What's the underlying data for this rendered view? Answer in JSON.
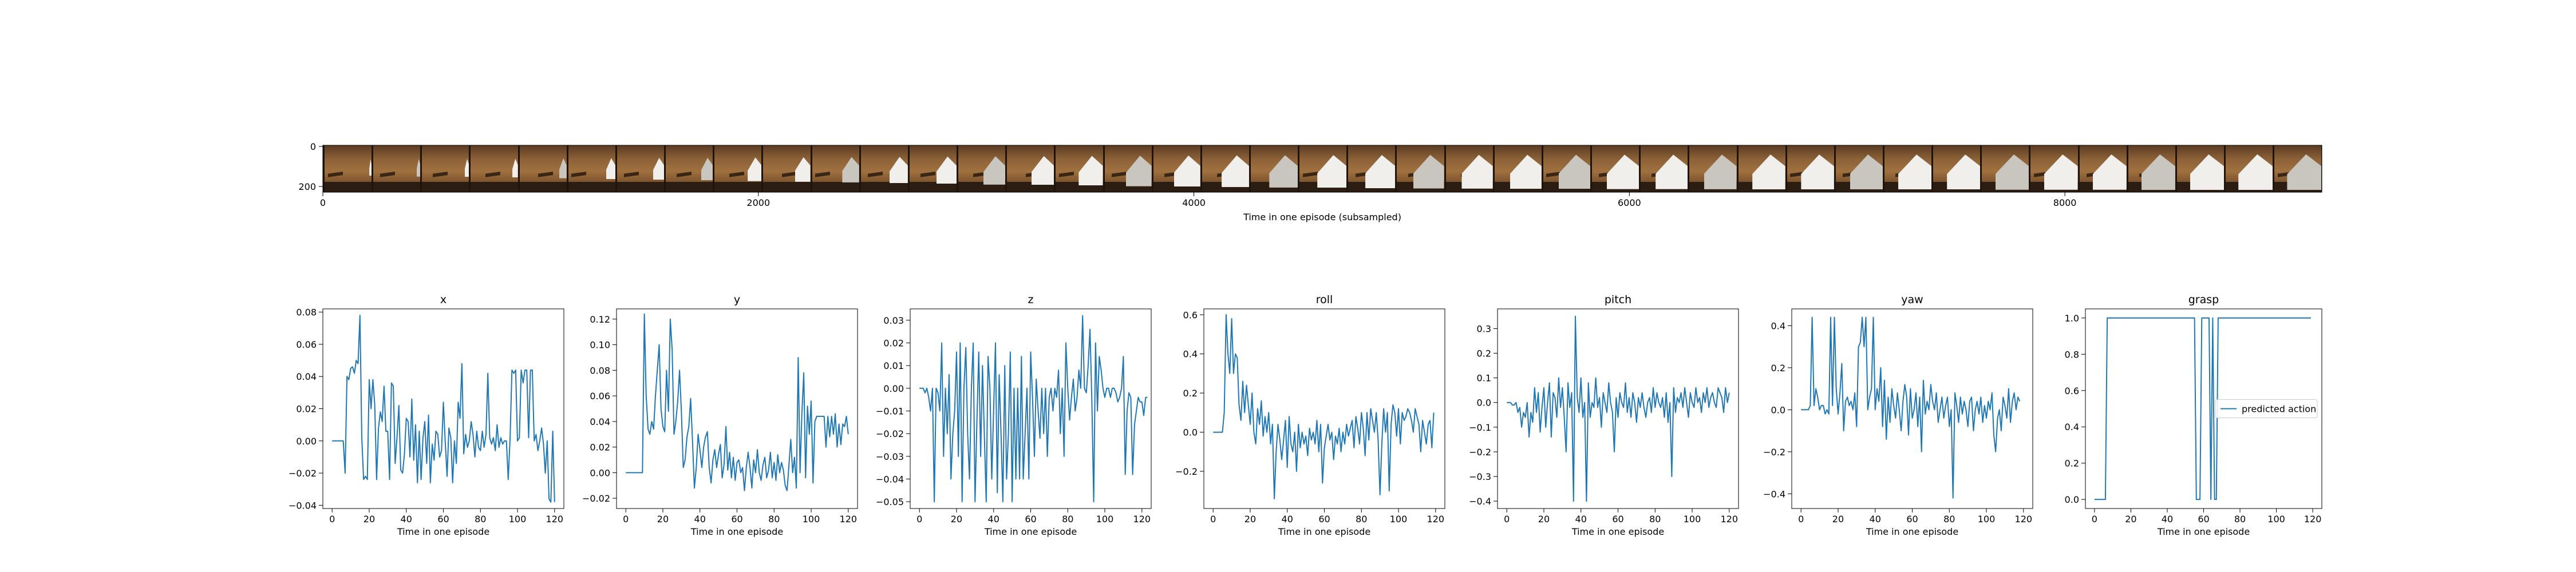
{
  "filmstrip": {
    "xlabel": "Time in one episode (subsampled)",
    "xticks": [
      0,
      2000,
      4000,
      6000,
      8000
    ],
    "yticks": [
      0,
      200
    ],
    "xmax": 9180,
    "frame_count": 41,
    "ribbon_levels": [
      0.05,
      0.1,
      0.12,
      0.15,
      0.2,
      0.25,
      0.3,
      0.32,
      0.38,
      0.42,
      0.46,
      0.5,
      0.55,
      0.6,
      0.62,
      0.66,
      0.7,
      0.72,
      0.75,
      0.78,
      0.8,
      0.82,
      0.84,
      0.85,
      0.86,
      0.87,
      0.88,
      0.88,
      0.89,
      0.9,
      0.9,
      0.9,
      0.91,
      0.91,
      0.92,
      0.92,
      0.92,
      0.93,
      0.93,
      0.94,
      0.94
    ]
  },
  "chart_data": [
    {
      "type": "line",
      "title": "x",
      "xlabel": "Time in one episode",
      "xlim": [
        -5,
        125
      ],
      "ylim": [
        -0.042,
        0.082
      ],
      "xticks": [
        0,
        20,
        40,
        60,
        80,
        100,
        120
      ],
      "yticks": [
        -0.04,
        -0.02,
        0.0,
        0.02,
        0.04,
        0.06,
        0.08
      ],
      "ytick_labels": [
        "−0.04",
        "−0.02",
        "0.00",
        "0.02",
        "0.04",
        "0.06",
        "0.08"
      ],
      "y": [
        0.0,
        0.0,
        0.0,
        0.0,
        0.0,
        0.0,
        0.0,
        -0.02,
        0.04,
        0.038,
        0.045,
        0.046,
        0.042,
        0.05,
        0.048,
        0.078,
        0.002,
        -0.024,
        -0.022,
        -0.024,
        0.038,
        0.02,
        0.038,
        0.022,
        -0.024,
        0.008,
        0.018,
        0.012,
        0.034,
        0.006,
        0.006,
        -0.024,
        0.036,
        0.034,
        -0.014,
        0.002,
        0.022,
        -0.018,
        -0.02,
        -0.008,
        0.014,
        0.012,
        -0.01,
        0.026,
        -0.012,
        0.01,
        -0.026,
        0.006,
        -0.024,
        0.002,
        0.012,
        -0.014,
        0.016,
        -0.026,
        -0.002,
        -0.012,
        0.006,
        0.004,
        -0.01,
        -0.006,
        0.024,
        0.0,
        -0.022,
        0.008,
        0.002,
        -0.026,
        0.0,
        -0.014,
        0.024,
        0.014,
        0.048,
        -0.008,
        0.004,
        -0.004,
        0.0,
        0.012,
        0.004,
        -0.01,
        0.006,
        -0.004,
        -0.006,
        0.006,
        -0.004,
        0.004,
        0.042,
        0.002,
        -0.002,
        0.002,
        -0.006,
        0.01,
        -0.004,
        0.002,
        -0.002,
        0.0,
        0.0,
        -0.024,
        0.002,
        0.044,
        0.042,
        0.044,
        0.0,
        0.002,
        0.044,
        0.036,
        0.044,
        0.044,
        0.002,
        0.044,
        0.044,
        0.0,
        0.004,
        -0.006,
        0.0,
        0.008,
        -0.002,
        -0.02,
        0.0,
        -0.036,
        -0.038,
        0.006,
        -0.038
      ]
    },
    {
      "type": "line",
      "title": "y",
      "xlabel": "Time in one episode",
      "xlim": [
        -5,
        125
      ],
      "ylim": [
        -0.028,
        0.128
      ],
      "xticks": [
        0,
        20,
        40,
        60,
        80,
        100,
        120
      ],
      "yticks": [
        -0.02,
        0.0,
        0.02,
        0.04,
        0.06,
        0.08,
        0.1,
        0.12
      ],
      "ytick_labels": [
        "−0.02",
        "0.00",
        "0.02",
        "0.04",
        "0.06",
        "0.08",
        "0.10",
        "0.12"
      ],
      "y": [
        0.0,
        0.0,
        0.0,
        0.0,
        0.0,
        0.0,
        0.0,
        0.0,
        0.0,
        0.0,
        0.124,
        0.06,
        0.034,
        0.03,
        0.04,
        0.034,
        0.06,
        0.08,
        0.1,
        0.05,
        0.036,
        0.032,
        0.08,
        0.048,
        0.12,
        0.096,
        0.03,
        0.04,
        0.056,
        0.08,
        0.048,
        0.004,
        0.01,
        0.028,
        0.036,
        0.058,
        0.024,
        -0.012,
        0.004,
        0.03,
        0.018,
        0.004,
        0.02,
        0.028,
        0.032,
        0.004,
        -0.008,
        0.01,
        0.018,
        0.004,
        0.014,
        0.022,
        -0.004,
        0.006,
        0.036,
        0.002,
        0.016,
        -0.004,
        0.012,
        -0.006,
        0.008,
        0.01,
        0.0,
        0.004,
        -0.014,
        0.004,
        0.016,
        0.004,
        -0.012,
        0.01,
        0.0,
        0.018,
        0.0,
        -0.006,
        0.006,
        0.012,
        -0.004,
        0.002,
        0.016,
        -0.004,
        0.008,
        -0.006,
        0.014,
        0.0,
        0.008,
        0.002,
        -0.01,
        -0.014,
        0.006,
        0.026,
        0.0,
        0.012,
        -0.012,
        0.09,
        0.0,
        0.046,
        0.078,
        -0.004,
        0.052,
        0.03,
        0.056,
        -0.008,
        0.04,
        0.044,
        0.044,
        0.044,
        0.044,
        0.044,
        0.02,
        0.044,
        0.028,
        0.044,
        0.03,
        0.046,
        0.02,
        0.038,
        0.022,
        0.038,
        0.036,
        0.044,
        0.03
      ]
    },
    {
      "type": "line",
      "title": "z",
      "xlabel": "Time in one episode",
      "xlim": [
        -5,
        125
      ],
      "ylim": [
        -0.053,
        0.035
      ],
      "xticks": [
        0,
        20,
        40,
        60,
        80,
        100,
        120
      ],
      "yticks": [
        -0.05,
        -0.04,
        -0.03,
        -0.02,
        -0.01,
        0.0,
        0.01,
        0.02,
        0.03
      ],
      "ytick_labels": [
        "−0.05",
        "−0.04",
        "−0.03",
        "−0.02",
        "−0.01",
        "0.00",
        "0.01",
        "0.02",
        "0.03"
      ],
      "y": [
        0.0,
        0.0,
        0.0,
        -0.002,
        0.0,
        -0.004,
        -0.01,
        0.0,
        -0.05,
        0.0,
        -0.002,
        -0.01,
        0.02,
        -0.03,
        0.0,
        -0.02,
        0.006,
        -0.04,
        -0.02,
        -0.01,
        0.016,
        -0.03,
        0.02,
        -0.05,
        0.0,
        0.018,
        -0.02,
        -0.04,
        0.0,
        0.02,
        -0.05,
        -0.014,
        0.016,
        -0.03,
        0.01,
        -0.02,
        -0.05,
        0.014,
        0.0,
        -0.04,
        -0.01,
        0.02,
        -0.046,
        0.006,
        -0.02,
        -0.05,
        0.01,
        -0.04,
        -0.02,
        0.016,
        -0.05,
        0.0,
        -0.04,
        0.0,
        -0.04,
        0.014,
        -0.04,
        -0.02,
        0.0,
        -0.04,
        0.016,
        -0.004,
        -0.03,
        0.004,
        -0.01,
        -0.022,
        0.0,
        -0.02,
        0.0,
        -0.03,
        -0.004,
        0.0,
        -0.01,
        0.0,
        -0.004,
        0.008,
        -0.02,
        0.0,
        -0.03,
        0.02,
        0.0,
        -0.014,
        -0.004,
        0.004,
        -0.01,
        -0.004,
        0.008,
        0.0,
        0.032,
        0.0,
        -0.002,
        0.01,
        0.026,
        -0.006,
        -0.05,
        0.02,
        -0.01,
        0.014,
        0.008,
        0.0,
        -0.004,
        0.0,
        0.0,
        -0.004,
        0.0,
        0.0,
        -0.002,
        -0.006,
        -0.004,
        0.0,
        0.014,
        -0.038,
        -0.01,
        -0.002,
        -0.004,
        -0.038,
        -0.016,
        -0.01,
        -0.004,
        -0.006,
        -0.006,
        -0.012,
        -0.004,
        -0.004
      ]
    },
    {
      "type": "line",
      "title": "roll",
      "xlabel": "Time in one episode",
      "xlim": [
        -5,
        125
      ],
      "ylim": [
        -0.39,
        0.63
      ],
      "xticks": [
        0,
        20,
        40,
        60,
        80,
        100,
        120
      ],
      "yticks": [
        -0.2,
        0.0,
        0.2,
        0.4,
        0.6
      ],
      "ytick_labels": [
        "−0.2",
        "0.0",
        "0.2",
        "0.4",
        "0.6"
      ],
      "y": [
        0.0,
        0.0,
        0.0,
        0.0,
        0.0,
        0.0,
        0.1,
        0.6,
        0.4,
        0.3,
        0.58,
        0.3,
        0.4,
        0.38,
        0.14,
        0.06,
        0.26,
        0.1,
        0.24,
        0.14,
        0.04,
        0.2,
        0.0,
        -0.06,
        0.12,
        0.04,
        0.16,
        -0.02,
        0.08,
        0.0,
        0.1,
        -0.06,
        0.04,
        -0.34,
        -0.1,
        0.04,
        -0.04,
        -0.14,
        -0.04,
        0.06,
        -0.18,
        0.08,
        -0.06,
        -0.1,
        0.0,
        -0.2,
        0.04,
        -0.08,
        0.0,
        -0.06,
        -0.02,
        -0.12,
        0.02,
        -0.04,
        0.0,
        -0.06,
        0.06,
        -0.1,
        0.04,
        -0.26,
        -0.08,
        -0.02,
        0.04,
        -0.04,
        0.0,
        -0.14,
        -0.02,
        -0.06,
        0.02,
        -0.1,
        0.0,
        -0.06,
        0.04,
        -0.02,
        0.02,
        0.06,
        -0.08,
        0.08,
        0.02,
        -0.06,
        0.1,
        0.02,
        -0.12,
        0.1,
        -0.04,
        0.12,
        0.06,
        0.0,
        0.1,
        -0.04,
        -0.32,
        -0.06,
        0.12,
        0.0,
        0.1,
        -0.3,
        0.04,
        0.14,
        0.1,
        -0.02,
        0.12,
        -0.06,
        0.1,
        0.06,
        0.08,
        0.12,
        0.1,
        0.06,
        0.0,
        0.12,
        0.08,
        0.04,
        -0.1,
        0.06,
        0.0,
        -0.06,
        0.04,
        0.06,
        -0.08,
        0.1
      ]
    },
    {
      "type": "line",
      "title": "pitch",
      "xlabel": "Time in one episode",
      "xlim": [
        -5,
        125
      ],
      "ylim": [
        -0.43,
        0.38
      ],
      "xticks": [
        0,
        20,
        40,
        60,
        80,
        100,
        120
      ],
      "yticks": [
        -0.4,
        -0.3,
        -0.2,
        -0.1,
        0.0,
        0.1,
        0.2,
        0.3
      ],
      "ytick_labels": [
        "−0.4",
        "−0.3",
        "−0.2",
        "−0.1",
        "0.0",
        "0.1",
        "0.2",
        "0.3"
      ],
      "y": [
        0.0,
        0.0,
        0.0,
        -0.01,
        -0.01,
        0.0,
        -0.04,
        -0.02,
        -0.1,
        -0.04,
        -0.06,
        0.0,
        -0.14,
        -0.04,
        -0.08,
        0.06,
        -0.04,
        0.04,
        -0.12,
        -0.02,
        0.06,
        -0.1,
        0.0,
        0.08,
        -0.14,
        0.04,
        0.02,
        -0.06,
        0.1,
        -0.02,
        0.06,
        -0.06,
        -0.2,
        0.08,
        -0.02,
        0.04,
        -0.4,
        0.35,
        0.02,
        -0.04,
        0.1,
        -0.06,
        0.0,
        -0.4,
        0.08,
        -0.06,
        0.0,
        -0.02,
        0.1,
        -0.02,
        0.02,
        -0.1,
        0.04,
        0.0,
        -0.04,
        0.08,
        0.0,
        -0.04,
        -0.2,
        0.02,
        -0.06,
        0.04,
        0.0,
        -0.02,
        0.08,
        -0.04,
        0.02,
        -0.06,
        0.04,
        0.0,
        -0.08,
        0.02,
        -0.02,
        0.04,
        -0.02,
        -0.06,
        0.0,
        0.02,
        -0.04,
        0.06,
        -0.02,
        0.04,
        0.0,
        -0.02,
        0.02,
        -0.06,
        0.04,
        -0.08,
        0.0,
        -0.3,
        0.06,
        -0.04,
        0.02,
        0.0,
        0.04,
        -0.02,
        0.06,
        0.0,
        -0.06,
        0.04,
        0.0,
        -0.02,
        0.06,
        0.0,
        0.02,
        -0.04,
        0.04,
        0.0,
        0.06,
        -0.02,
        0.02,
        0.04,
        0.0,
        -0.02,
        0.06,
        0.04,
        0.02,
        -0.04,
        0.06,
        0.0,
        0.04
      ]
    },
    {
      "type": "line",
      "title": "yaw",
      "xlabel": "Time in one episode",
      "xlim": [
        -5,
        125
      ],
      "ylim": [
        -0.47,
        0.48
      ],
      "xticks": [
        0,
        20,
        40,
        60,
        80,
        100,
        120
      ],
      "yticks": [
        -0.4,
        -0.2,
        0.0,
        0.2,
        0.4
      ],
      "ytick_labels": [
        "−0.4",
        "−0.2",
        "0.0",
        "0.2",
        "0.4"
      ],
      "y": [
        0.0,
        0.0,
        0.0,
        0.0,
        0.0,
        0.02,
        0.44,
        0.02,
        0.1,
        0.06,
        0.0,
        0.02,
        0.02,
        -0.02,
        0.0,
        -0.02,
        0.44,
        0.02,
        0.44,
        0.1,
        -0.02,
        0.08,
        0.22,
        -0.1,
        0.04,
        0.06,
        0.02,
        0.04,
        0.0,
        0.08,
        -0.08,
        0.3,
        0.32,
        0.44,
        0.3,
        0.44,
        0.0,
        0.06,
        0.1,
        0.44,
        0.0,
        0.1,
        0.04,
        0.2,
        -0.08,
        0.14,
        -0.14,
        0.06,
        -0.06,
        0.1,
        0.02,
        -0.04,
        0.08,
        0.0,
        -0.1,
        0.04,
        0.12,
        0.06,
        -0.12,
        0.1,
        -0.04,
        0.0,
        0.08,
        -0.08,
        0.06,
        -0.2,
        0.14,
        -0.02,
        0.04,
        0.0,
        0.12,
        0.04,
        0.0,
        0.08,
        -0.06,
        0.0,
        0.06,
        -0.04,
        0.02,
        0.06,
        -0.08,
        0.0,
        -0.42,
        0.08,
        0.02,
        -0.06,
        0.06,
        -0.02,
        0.04,
        0.0,
        -0.08,
        0.04,
        0.06,
        -0.1,
        0.0,
        0.04,
        -0.02,
        0.06,
        -0.06,
        0.02,
        -0.04,
        0.04,
        0.0,
        0.08,
        -0.12,
        -0.2,
        -0.04,
        0.0,
        -0.1,
        0.06,
        0.02,
        -0.04,
        0.1,
        -0.06,
        0.04,
        0.08,
        0.0,
        0.06,
        0.04
      ]
    },
    {
      "type": "line",
      "title": "grasp",
      "xlabel": "Time in one episode",
      "xlim": [
        -5,
        125
      ],
      "ylim": [
        -0.05,
        1.05
      ],
      "xticks": [
        0,
        20,
        40,
        60,
        80,
        100,
        120
      ],
      "yticks": [
        0.0,
        0.2,
        0.4,
        0.6,
        0.8,
        1.0
      ],
      "ytick_labels": [
        "0.0",
        "0.2",
        "0.4",
        "0.6",
        "0.8",
        "1.0"
      ],
      "legend": {
        "label": "predicted action",
        "position": "center-right"
      },
      "y": [
        0,
        0,
        0,
        0,
        0,
        0,
        0,
        1,
        1,
        1,
        1,
        1,
        1,
        1,
        1,
        1,
        1,
        1,
        1,
        1,
        1,
        1,
        1,
        1,
        1,
        1,
        1,
        1,
        1,
        1,
        1,
        1,
        1,
        1,
        1,
        1,
        1,
        1,
        1,
        1,
        1,
        1,
        1,
        1,
        1,
        1,
        1,
        1,
        1,
        1,
        1,
        1,
        1,
        1,
        1,
        1,
        0,
        0,
        0,
        1,
        1,
        1,
        1,
        1,
        0,
        1,
        0,
        0,
        1,
        1,
        1,
        1,
        1,
        1,
        1,
        1,
        1,
        1,
        1,
        1,
        1,
        1,
        1,
        1,
        1,
        1,
        1,
        1,
        1,
        1,
        1,
        1,
        1,
        1,
        1,
        1,
        1,
        1,
        1,
        1,
        1,
        1,
        1,
        1,
        1,
        1,
        1,
        1,
        1,
        1,
        1,
        1,
        1,
        1,
        1,
        1,
        1,
        1,
        1,
        1
      ]
    }
  ],
  "colors": {
    "line": "#1f77b4",
    "axis": "#000000",
    "background": "#ffffff",
    "legend_border": "#cccccc"
  }
}
